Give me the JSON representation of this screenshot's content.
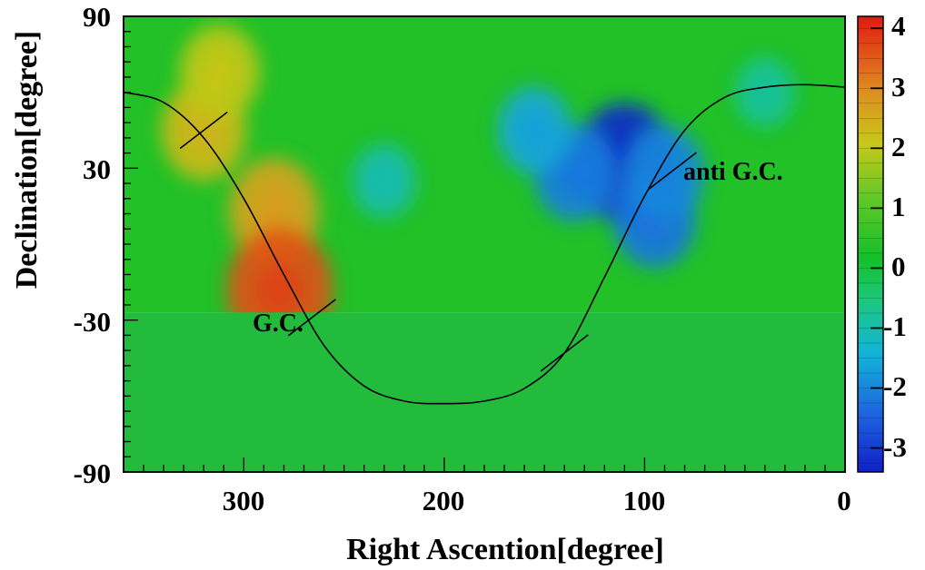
{
  "chart_data": {
    "type": "heatmap",
    "title": "",
    "xlabel": "Right Ascention[degree]",
    "ylabel": "Declination[degree]",
    "xlim": [
      360,
      0
    ],
    "ylim": [
      -90,
      90
    ],
    "x_axis_reversed": true,
    "x_ticks": [
      "300",
      "200",
      "100",
      "0"
    ],
    "x_tick_values": [
      300,
      200,
      100,
      0
    ],
    "y_ticks": [
      "90",
      "30",
      "-30",
      "-90"
    ],
    "y_tick_values": [
      90,
      30,
      -30,
      -90
    ],
    "colorbar": {
      "range": [
        -3.4,
        4.2
      ],
      "ticks": [
        "4",
        "3",
        "2",
        "1",
        "0",
        "-1",
        "-2",
        "-3"
      ],
      "tick_values": [
        4,
        3,
        2,
        1,
        0,
        -1,
        -2,
        -3
      ]
    },
    "observed_dec_range": [
      -27,
      90
    ],
    "unobserved_value": 0,
    "significance_regions": [
      {
        "ra": 320,
        "dec": 45,
        "value": 2.3
      },
      {
        "ra": 312,
        "dec": 68,
        "value": 2.0
      },
      {
        "ra": 285,
        "dec": 13,
        "value": 2.6
      },
      {
        "ra": 282,
        "dec": -18,
        "value": 3.6
      },
      {
        "ra": 110,
        "dec": 32,
        "value": -3.3
      },
      {
        "ra": 135,
        "dec": 28,
        "value": -2.1
      },
      {
        "ra": 95,
        "dec": 10,
        "value": -2.2
      },
      {
        "ra": 90,
        "dec": 28,
        "value": -2.0
      },
      {
        "ra": 155,
        "dec": 45,
        "value": -1.6
      },
      {
        "ra": 230,
        "dec": 25,
        "value": -1.0
      },
      {
        "ra": 40,
        "dec": 60,
        "value": -0.8
      }
    ],
    "galactic_plane_ra": [
      360,
      340,
      320,
      300,
      280,
      260,
      240,
      220,
      200,
      180,
      160,
      140,
      120,
      100,
      80,
      60,
      40,
      20,
      0
    ],
    "galactic_plane_dec": [
      60,
      56,
      42,
      18,
      -12,
      -40,
      -56,
      -62,
      -63,
      -62,
      -57,
      -43,
      -13,
      19,
      45,
      58,
      62,
      63,
      62
    ],
    "annotations": [
      {
        "text": "G.C.",
        "ra": 266,
        "dec": -29
      },
      {
        "text": "anti G.C.",
        "ra": 86,
        "dec": 29
      }
    ]
  },
  "colors": {
    "background": "#ffffff",
    "unobserved_fill": "#22bb3c",
    "curve": "#000000"
  }
}
